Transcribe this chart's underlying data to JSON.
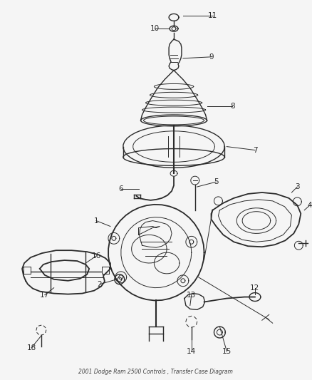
{
  "title": "2001 Dodge Ram 2500 Controls , Transfer Case Diagram",
  "bg_color": "#f5f5f5",
  "line_color": "#2a2a2a",
  "label_color": "#2a2a2a",
  "fig_width": 4.39,
  "fig_height": 5.33,
  "dpi": 100
}
